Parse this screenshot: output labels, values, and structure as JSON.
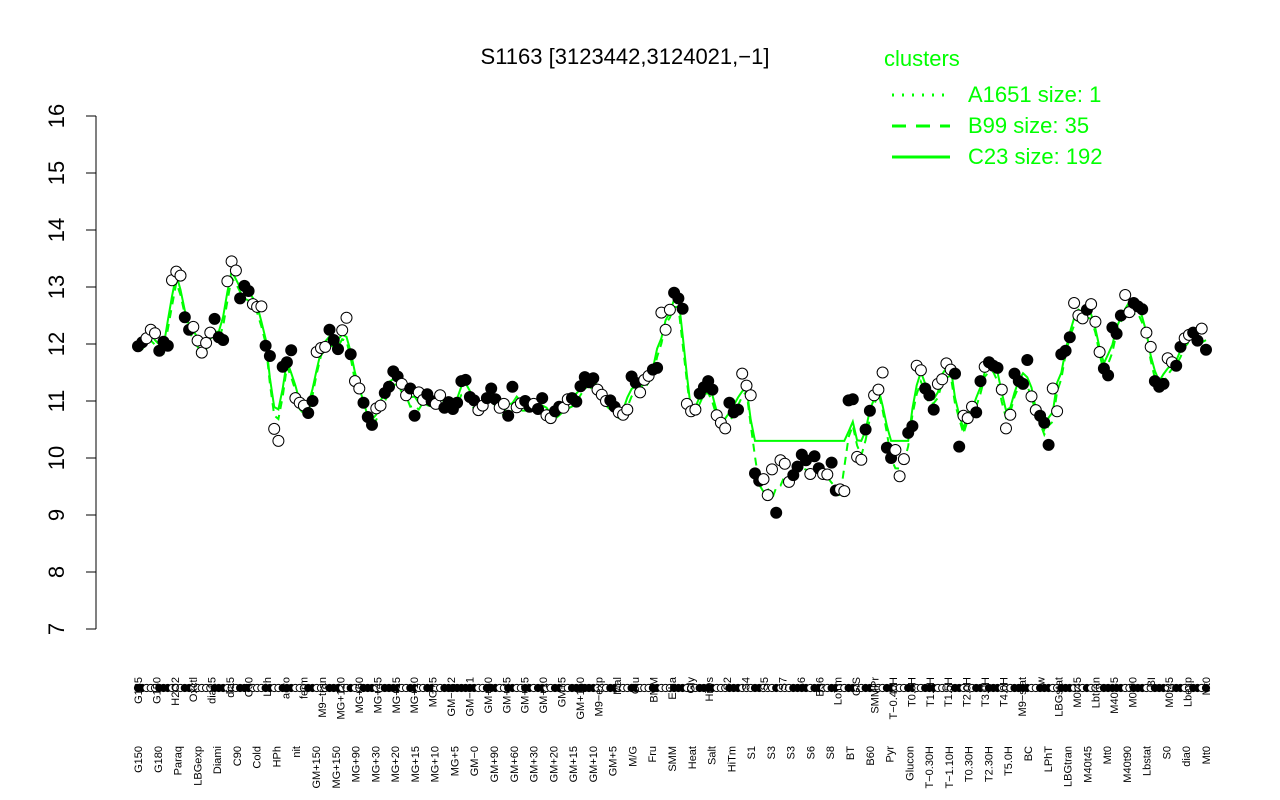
{
  "chart_data": {
    "type": "line",
    "title": "S1163 [3123442,3124021,−1]",
    "xlabel": "",
    "ylabel": "",
    "ylim": [
      7,
      16
    ],
    "yticks": [
      7,
      8,
      9,
      10,
      11,
      12,
      13,
      14,
      15,
      16
    ],
    "colors": {
      "lines": "#00ff00",
      "points": "#000000",
      "points_light": "#ffffff",
      "axis": "#000000"
    },
    "legend": {
      "title": "clusters",
      "placement": "top-right",
      "items": [
        {
          "label": "A1651 size: 1",
          "style": "dotted"
        },
        {
          "label": "B99 size: 35",
          "style": "dashed"
        },
        {
          "label": "C23 size: 192",
          "style": "solid"
        }
      ]
    },
    "top_labels": [
      "G135",
      "G150",
      "H2O2",
      "Oxctl",
      "dia15",
      "dia5",
      "C30",
      "LPh",
      "aero",
      "ferm",
      "M9−tran",
      "MG+120",
      "MG+60",
      "MG+45",
      "MG+15",
      "MG+10",
      "MG+5",
      "GM−0.2",
      "GM−0.1",
      "GM+60",
      "GM+45",
      "GM+15",
      "GM+10",
      "GM+5",
      "GM+150",
      "M9−exp",
      "Mal",
      "Glu",
      "BMM",
      "Etha",
      "Gly",
      "HiOs",
      "S2",
      "S4",
      "S5",
      "S7",
      "S6",
      "B36",
      "LoTm",
      "G/S",
      "SMMPr",
      "T−0.40H",
      "T0.0H",
      "T1.0H",
      "T1.5H",
      "T2.0H",
      "T3.0H",
      "T4.0H",
      "M9−stat",
      "Sw",
      "LBGstat",
      "M0t45",
      "Lbtran",
      "M40t45",
      "M0t90",
      "BI",
      "M0t45",
      "Lbexp",
      "Mt0"
    ],
    "bottom_labels": [
      "G150",
      "G180",
      "Paraq",
      "LBGexp",
      "Diami",
      "C90",
      "Cold",
      "HPh",
      "nit",
      "GM+150",
      "MG+150",
      "MG+90",
      "MG+30",
      "MG+20",
      "MG+15",
      "MG+10",
      "MG+5",
      "GM−0",
      "GM+90",
      "GM+60",
      "GM+30",
      "GM+20",
      "GM+15",
      "GM+10",
      "GM+5",
      "M/G",
      "Fru",
      "SMM",
      "Heat",
      "Salt",
      "HiTm",
      "S1",
      "S3",
      "S3",
      "S6",
      "S8",
      "BT",
      "B60",
      "Pyr",
      "Glucon",
      "T−0.30H",
      "T−1.10H",
      "T0.30H",
      "T2.30H",
      "T5.0H",
      "BC",
      "LPhT",
      "LBGtran",
      "M40t45",
      "Mt0",
      "M40t90",
      "Lbstat",
      "S0",
      "dia0",
      "Mt0"
    ],
    "points": [
      [
        1,
        11.96,
        0
      ],
      [
        2,
        12.03,
        0
      ],
      [
        3,
        12.1,
        1
      ],
      [
        4,
        12.25,
        1
      ],
      [
        5,
        12.19,
        1
      ],
      [
        6,
        11.88,
        0
      ],
      [
        7,
        12.04,
        0
      ],
      [
        8,
        11.97,
        0
      ],
      [
        9,
        13.12,
        1
      ],
      [
        10,
        13.27,
        1
      ],
      [
        11,
        13.2,
        1
      ],
      [
        12,
        12.47,
        0
      ],
      [
        13,
        12.25,
        0
      ],
      [
        14,
        12.3,
        1
      ],
      [
        15,
        12.06,
        1
      ],
      [
        16,
        11.85,
        1
      ],
      [
        17,
        12.02,
        1
      ],
      [
        18,
        12.2,
        1
      ],
      [
        19,
        12.44,
        0
      ],
      [
        20,
        12.12,
        0
      ],
      [
        21,
        12.07,
        0
      ],
      [
        22,
        13.1,
        1
      ],
      [
        23,
        13.45,
        1
      ],
      [
        24,
        13.29,
        1
      ],
      [
        25,
        12.8,
        0
      ],
      [
        26,
        13.02,
        0
      ],
      [
        27,
        12.93,
        0
      ],
      [
        28,
        12.7,
        1
      ],
      [
        29,
        12.65,
        1
      ],
      [
        30,
        12.66,
        1
      ],
      [
        31,
        11.97,
        0
      ],
      [
        32,
        11.79,
        0
      ],
      [
        33,
        10.51,
        1
      ],
      [
        34,
        10.3,
        1
      ],
      [
        35,
        11.6,
        0
      ],
      [
        36,
        11.68,
        0
      ],
      [
        37,
        11.89,
        0
      ],
      [
        38,
        11.05,
        1
      ],
      [
        39,
        10.97,
        1
      ],
      [
        40,
        10.92,
        1
      ],
      [
        41,
        10.79,
        0
      ],
      [
        42,
        11.0,
        0
      ],
      [
        43,
        11.86,
        1
      ],
      [
        44,
        11.93,
        1
      ],
      [
        45,
        11.95,
        1
      ],
      [
        46,
        12.25,
        0
      ],
      [
        47,
        12.07,
        0
      ],
      [
        48,
        11.91,
        0
      ],
      [
        49,
        12.24,
        1
      ],
      [
        50,
        12.46,
        1
      ],
      [
        51,
        11.82,
        0
      ],
      [
        52,
        11.35,
        1
      ],
      [
        53,
        11.22,
        1
      ],
      [
        54,
        10.97,
        0
      ],
      [
        55,
        10.72,
        0
      ],
      [
        56,
        10.58,
        0
      ],
      [
        57,
        10.87,
        1
      ],
      [
        58,
        10.92,
        1
      ],
      [
        59,
        11.14,
        0
      ],
      [
        60,
        11.25,
        0
      ],
      [
        61,
        11.52,
        0
      ],
      [
        62,
        11.43,
        0
      ],
      [
        63,
        11.3,
        1
      ],
      [
        64,
        11.1,
        1
      ],
      [
        65,
        11.22,
        0
      ],
      [
        66,
        10.74,
        0
      ],
      [
        67,
        11.15,
        1
      ],
      [
        68,
        11.02,
        1
      ],
      [
        69,
        11.12,
        0
      ],
      [
        70,
        11.0,
        0
      ],
      [
        71,
        10.95,
        1
      ],
      [
        72,
        11.1,
        1
      ],
      [
        73,
        10.88,
        0
      ],
      [
        74,
        10.98,
        0
      ],
      [
        75,
        10.86,
        0
      ],
      [
        76,
        10.97,
        0
      ],
      [
        77,
        11.35,
        0
      ],
      [
        78,
        11.37,
        0
      ],
      [
        79,
        11.07,
        0
      ],
      [
        80,
        11.01,
        0
      ],
      [
        81,
        10.84,
        1
      ],
      [
        82,
        10.92,
        1
      ],
      [
        83,
        11.05,
        0
      ],
      [
        84,
        11.22,
        0
      ],
      [
        85,
        11.03,
        0
      ],
      [
        86,
        10.88,
        1
      ],
      [
        87,
        10.95,
        1
      ],
      [
        88,
        10.74,
        0
      ],
      [
        89,
        11.25,
        0
      ],
      [
        90,
        10.89,
        1
      ],
      [
        91,
        10.96,
        1
      ],
      [
        92,
        11.0,
        0
      ],
      [
        93,
        10.9,
        0
      ],
      [
        94,
        10.95,
        1
      ],
      [
        95,
        10.86,
        0
      ],
      [
        96,
        11.05,
        0
      ],
      [
        97,
        10.75,
        1
      ],
      [
        98,
        10.7,
        1
      ],
      [
        99,
        10.82,
        0
      ],
      [
        100,
        10.9,
        0
      ],
      [
        101,
        10.88,
        1
      ],
      [
        102,
        11.03,
        1
      ],
      [
        103,
        11.05,
        0
      ],
      [
        104,
        10.99,
        0
      ],
      [
        105,
        11.26,
        0
      ],
      [
        106,
        11.42,
        0
      ],
      [
        107,
        11.33,
        0
      ],
      [
        108,
        11.4,
        0
      ],
      [
        109,
        11.2,
        1
      ],
      [
        110,
        11.11,
        1
      ],
      [
        111,
        11.0,
        1
      ],
      [
        112,
        11.01,
        0
      ],
      [
        113,
        10.9,
        0
      ],
      [
        114,
        10.8,
        1
      ],
      [
        115,
        10.76,
        1
      ],
      [
        116,
        10.85,
        1
      ],
      [
        117,
        11.43,
        0
      ],
      [
        118,
        11.32,
        0
      ],
      [
        119,
        11.15,
        1
      ],
      [
        120,
        11.37,
        1
      ],
      [
        121,
        11.44,
        1
      ],
      [
        122,
        11.55,
        0
      ],
      [
        123,
        11.58,
        0
      ],
      [
        124,
        12.55,
        1
      ],
      [
        125,
        12.25,
        1
      ],
      [
        126,
        12.6,
        1
      ],
      [
        127,
        12.9,
        0
      ],
      [
        128,
        12.8,
        0
      ],
      [
        129,
        12.62,
        0
      ],
      [
        130,
        10.95,
        1
      ],
      [
        131,
        10.82,
        1
      ],
      [
        132,
        10.85,
        1
      ],
      [
        133,
        11.13,
        0
      ],
      [
        134,
        11.24,
        0
      ],
      [
        135,
        11.35,
        0
      ],
      [
        136,
        11.2,
        0
      ],
      [
        137,
        10.75,
        1
      ],
      [
        138,
        10.62,
        1
      ],
      [
        139,
        10.52,
        1
      ],
      [
        140,
        10.97,
        0
      ],
      [
        141,
        10.8,
        0
      ],
      [
        142,
        10.85,
        0
      ],
      [
        143,
        11.48,
        1
      ],
      [
        144,
        11.27,
        1
      ],
      [
        145,
        11.1,
        1
      ],
      [
        146,
        9.73,
        0
      ],
      [
        147,
        9.6,
        0
      ],
      [
        148,
        9.63,
        1
      ],
      [
        149,
        9.35,
        1
      ],
      [
        150,
        9.8,
        1
      ],
      [
        151,
        9.04,
        0
      ],
      [
        152,
        9.96,
        1
      ],
      [
        153,
        9.9,
        1
      ],
      [
        154,
        9.58,
        1
      ],
      [
        155,
        9.7,
        0
      ],
      [
        156,
        9.85,
        0
      ],
      [
        157,
        10.06,
        0
      ],
      [
        158,
        9.96,
        0
      ],
      [
        159,
        9.72,
        1
      ],
      [
        160,
        10.03,
        0
      ],
      [
        161,
        9.82,
        0
      ],
      [
        162,
        9.72,
        1
      ],
      [
        163,
        9.71,
        1
      ],
      [
        164,
        9.92,
        0
      ],
      [
        165,
        9.43,
        0
      ],
      [
        166,
        9.45,
        1
      ],
      [
        167,
        9.42,
        1
      ],
      [
        168,
        11.01,
        0
      ],
      [
        169,
        11.03,
        0
      ],
      [
        170,
        10.02,
        1
      ],
      [
        171,
        9.97,
        1
      ],
      [
        172,
        10.5,
        0
      ],
      [
        173,
        10.83,
        0
      ],
      [
        174,
        11.1,
        1
      ],
      [
        175,
        11.2,
        1
      ],
      [
        176,
        11.5,
        1
      ],
      [
        177,
        10.18,
        0
      ],
      [
        178,
        10.0,
        0
      ],
      [
        179,
        10.14,
        1
      ],
      [
        180,
        9.68,
        1
      ],
      [
        181,
        9.98,
        1
      ],
      [
        182,
        10.44,
        0
      ],
      [
        183,
        10.56,
        0
      ],
      [
        184,
        11.62,
        1
      ],
      [
        185,
        11.54,
        1
      ],
      [
        186,
        11.22,
        0
      ],
      [
        187,
        11.1,
        0
      ],
      [
        188,
        10.85,
        0
      ],
      [
        189,
        11.3,
        1
      ],
      [
        190,
        11.38,
        1
      ],
      [
        191,
        11.66,
        1
      ],
      [
        192,
        11.55,
        1
      ],
      [
        193,
        11.48,
        0
      ],
      [
        194,
        10.2,
        0
      ],
      [
        195,
        10.74,
        1
      ],
      [
        196,
        10.7,
        1
      ],
      [
        197,
        10.9,
        1
      ],
      [
        198,
        10.8,
        0
      ],
      [
        199,
        11.35,
        0
      ],
      [
        200,
        11.6,
        1
      ],
      [
        201,
        11.68,
        0
      ],
      [
        202,
        11.62,
        0
      ],
      [
        203,
        11.58,
        0
      ],
      [
        204,
        11.2,
        1
      ],
      [
        205,
        10.52,
        1
      ],
      [
        206,
        10.76,
        1
      ],
      [
        207,
        11.48,
        0
      ],
      [
        208,
        11.35,
        0
      ],
      [
        209,
        11.3,
        0
      ],
      [
        210,
        11.72,
        0
      ],
      [
        211,
        11.08,
        1
      ],
      [
        212,
        10.84,
        1
      ],
      [
        213,
        10.74,
        0
      ],
      [
        214,
        10.62,
        0
      ],
      [
        215,
        10.23,
        0
      ],
      [
        216,
        11.22,
        1
      ],
      [
        217,
        10.82,
        1
      ],
      [
        218,
        11.82,
        0
      ],
      [
        219,
        11.88,
        0
      ],
      [
        220,
        12.12,
        0
      ],
      [
        221,
        12.72,
        1
      ],
      [
        222,
        12.5,
        1
      ],
      [
        223,
        12.45,
        1
      ],
      [
        224,
        12.6,
        0
      ],
      [
        225,
        12.7,
        1
      ],
      [
        226,
        12.39,
        1
      ],
      [
        227,
        11.86,
        1
      ],
      [
        228,
        11.57,
        0
      ],
      [
        229,
        11.45,
        0
      ],
      [
        230,
        12.29,
        0
      ],
      [
        231,
        12.18,
        0
      ],
      [
        232,
        12.5,
        0
      ],
      [
        233,
        12.86,
        1
      ],
      [
        234,
        12.56,
        1
      ],
      [
        235,
        12.72,
        0
      ],
      [
        236,
        12.66,
        0
      ],
      [
        237,
        12.61,
        0
      ],
      [
        238,
        12.2,
        1
      ],
      [
        239,
        11.95,
        1
      ],
      [
        240,
        11.35,
        0
      ],
      [
        241,
        11.25,
        0
      ],
      [
        242,
        11.3,
        0
      ],
      [
        243,
        11.75,
        1
      ],
      [
        244,
        11.68,
        1
      ],
      [
        245,
        11.62,
        0
      ],
      [
        246,
        11.95,
        0
      ],
      [
        247,
        12.1,
        1
      ],
      [
        248,
        12.16,
        1
      ],
      [
        249,
        12.2,
        0
      ],
      [
        250,
        12.06,
        0
      ],
      [
        251,
        12.27,
        1
      ],
      [
        252,
        11.9,
        0
      ]
    ]
  }
}
